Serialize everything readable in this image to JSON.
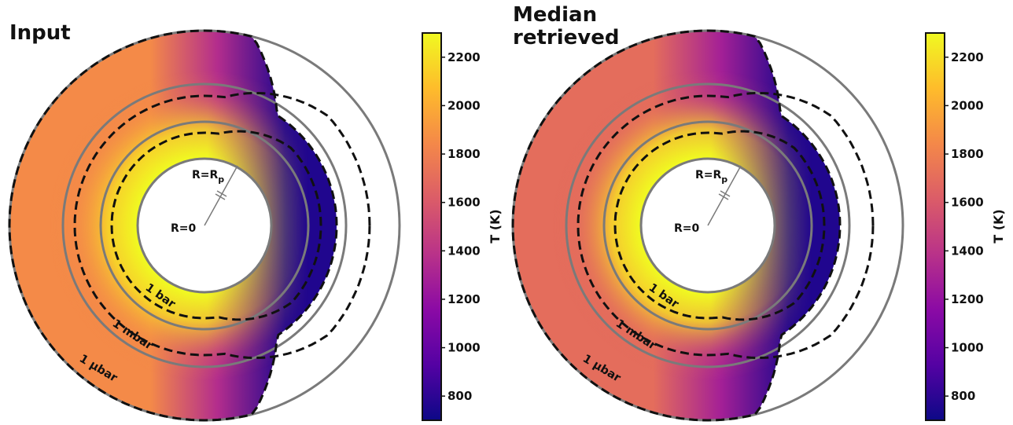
{
  "panels": [
    {
      "title_lines": [
        "Input"
      ],
      "pressure_labels": [
        "1 bar",
        "1 mbar",
        "1 μbar"
      ],
      "radius_labels": {
        "planet": "R=R",
        "planet_sub": "p",
        "center": "R=0"
      },
      "day_temperature_K": 1850,
      "night_temperature_K": 760,
      "inner_peak_temperature_K": 2300,
      "colorbar": {
        "label": "T (K)",
        "ticks": [
          800,
          1000,
          1200,
          1400,
          1600,
          1800,
          2000,
          2200
        ],
        "range": [
          700,
          2300
        ]
      }
    },
    {
      "title_lines": [
        "Median",
        "retrieved"
      ],
      "pressure_labels": [
        "1 bar",
        "1 mbar",
        "1 μbar"
      ],
      "radius_labels": {
        "planet": "R=R",
        "planet_sub": "p",
        "center": "R=0"
      },
      "day_temperature_K": 1700,
      "night_temperature_K": 760,
      "inner_peak_temperature_K": 2300,
      "colorbar": {
        "label": "T (K)",
        "ticks": [
          800,
          1000,
          1200,
          1400,
          1600,
          1800,
          2000,
          2200
        ],
        "range": [
          700,
          2300
        ]
      }
    }
  ],
  "colormap": "plasma"
}
